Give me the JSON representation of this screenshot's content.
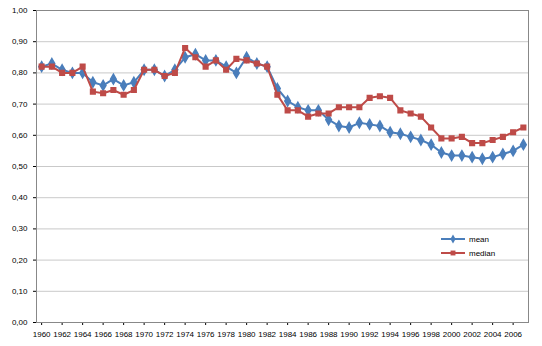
{
  "chart_data": {
    "type": "line",
    "x": [
      1960,
      1961,
      1962,
      1963,
      1964,
      1965,
      1966,
      1967,
      1968,
      1969,
      1970,
      1971,
      1972,
      1973,
      1974,
      1975,
      1976,
      1977,
      1978,
      1979,
      1980,
      1981,
      1982,
      1983,
      1984,
      1985,
      1986,
      1987,
      1988,
      1989,
      1990,
      1991,
      1992,
      1993,
      1994,
      1995,
      1996,
      1997,
      1998,
      1999,
      2000,
      2001,
      2002,
      2003,
      2004,
      2005,
      2006,
      2007
    ],
    "series": [
      {
        "name": "mean",
        "color": "#4a7ebb",
        "marker": "diamond",
        "values": [
          0.82,
          0.83,
          0.81,
          0.8,
          0.8,
          0.77,
          0.76,
          0.78,
          0.76,
          0.77,
          0.81,
          0.81,
          0.79,
          0.81,
          0.85,
          0.86,
          0.84,
          0.84,
          0.82,
          0.8,
          0.85,
          0.83,
          0.82,
          0.75,
          0.71,
          0.69,
          0.68,
          0.68,
          0.65,
          0.63,
          0.625,
          0.64,
          0.635,
          0.63,
          0.61,
          0.605,
          0.595,
          0.585,
          0.57,
          0.545,
          0.535,
          0.535,
          0.53,
          0.525,
          0.53,
          0.54,
          0.55,
          0.57
        ]
      },
      {
        "name": "median",
        "color": "#be4b48",
        "marker": "square",
        "values": [
          0.82,
          0.82,
          0.8,
          0.8,
          0.82,
          0.74,
          0.735,
          0.745,
          0.73,
          0.745,
          0.81,
          0.81,
          0.79,
          0.8,
          0.88,
          0.85,
          0.82,
          0.84,
          0.81,
          0.845,
          0.84,
          0.83,
          0.82,
          0.73,
          0.68,
          0.68,
          0.66,
          0.67,
          0.67,
          0.69,
          0.69,
          0.69,
          0.72,
          0.725,
          0.72,
          0.68,
          0.67,
          0.66,
          0.625,
          0.59,
          0.59,
          0.595,
          0.575,
          0.575,
          0.585,
          0.595,
          0.61,
          0.625
        ]
      }
    ],
    "xlim": [
      1959.5,
      2007.5
    ],
    "xticks": [
      1960,
      1962,
      1964,
      1966,
      1968,
      1970,
      1972,
      1974,
      1976,
      1978,
      1980,
      1982,
      1984,
      1986,
      1988,
      1990,
      1992,
      1994,
      1996,
      1998,
      2000,
      2002,
      2004,
      2006
    ],
    "ylim": [
      0,
      1
    ],
    "yticks": [
      {
        "value": 0,
        "label": "0,00"
      },
      {
        "value": 0.1,
        "label": "0,10"
      },
      {
        "value": 0.2,
        "label": "0,20"
      },
      {
        "value": 0.3,
        "label": "0,30"
      },
      {
        "value": 0.4,
        "label": "0,40"
      },
      {
        "value": 0.5,
        "label": "0,50"
      },
      {
        "value": 0.6,
        "label": "0,60"
      },
      {
        "value": 0.7,
        "label": "0,70"
      },
      {
        "value": 0.8,
        "label": "0,80"
      },
      {
        "value": 0.9,
        "label": "0,90"
      },
      {
        "value": 1,
        "label": "1,00"
      }
    ],
    "grid": true,
    "legend": "bottom-right"
  }
}
